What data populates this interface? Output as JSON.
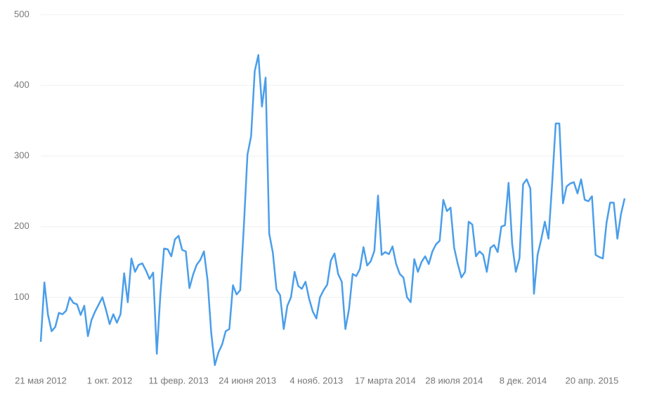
{
  "chart_data": {
    "type": "line",
    "categories": [
      "21 мая 2012",
      null,
      null,
      null,
      null,
      null,
      null,
      null,
      null,
      null,
      null,
      null,
      null,
      null,
      null,
      null,
      null,
      null,
      null,
      "1 окт. 2012",
      null,
      null,
      null,
      null,
      null,
      null,
      null,
      null,
      null,
      null,
      null,
      null,
      null,
      null,
      null,
      null,
      null,
      null,
      "11 февр. 2013",
      null,
      null,
      null,
      null,
      null,
      null,
      null,
      null,
      null,
      null,
      null,
      null,
      null,
      null,
      null,
      null,
      null,
      null,
      "24 июня 2013",
      null,
      null,
      null,
      null,
      null,
      null,
      null,
      null,
      null,
      null,
      null,
      null,
      null,
      null,
      null,
      null,
      null,
      null,
      "4 нояб. 2013",
      null,
      null,
      null,
      null,
      null,
      null,
      null,
      null,
      null,
      null,
      null,
      null,
      null,
      null,
      null,
      null,
      null,
      null,
      "17 марта 2014",
      null,
      null,
      null,
      null,
      null,
      null,
      null,
      null,
      null,
      null,
      null,
      null,
      null,
      null,
      null,
      null,
      null,
      null,
      "28 июля 2014",
      null,
      null,
      null,
      null,
      null,
      null,
      null,
      null,
      null,
      null,
      null,
      null,
      null,
      null,
      null,
      null,
      null,
      null,
      "8 дек. 2014",
      null,
      null,
      null,
      null,
      null,
      null,
      null,
      null,
      null,
      null,
      null,
      null,
      null,
      null,
      null,
      null,
      null,
      null,
      "20 апр. 2015",
      null,
      null,
      null,
      null,
      null,
      null,
      null,
      null,
      null
    ],
    "series": [
      {
        "color": "#4a9eea",
        "values": [
          37,
          121,
          75,
          52,
          58,
          78,
          76,
          81,
          100,
          92,
          90,
          75,
          88,
          45,
          68,
          80,
          90,
          100,
          82,
          62,
          76,
          64,
          76,
          134,
          93,
          155,
          136,
          146,
          148,
          138,
          126,
          135,
          20,
          105,
          169,
          168,
          158,
          182,
          187,
          167,
          165,
          113,
          132,
          146,
          153,
          165,
          124,
          50,
          4,
          22,
          33,
          52,
          55,
          117,
          104,
          110,
          200,
          302,
          328,
          420,
          443,
          370,
          411,
          190,
          163,
          111,
          103,
          55,
          88,
          100,
          136,
          116,
          112,
          122,
          98,
          80,
          70,
          100,
          110,
          118,
          152,
          162,
          133,
          122,
          55,
          83,
          133,
          130,
          140,
          171,
          145,
          151,
          166,
          244,
          160,
          164,
          161,
          172,
          147,
          133,
          128,
          100,
          93,
          154,
          136,
          150,
          158,
          147,
          165,
          175,
          180,
          238,
          222,
          227,
          170,
          147,
          128,
          136,
          207,
          203,
          158,
          165,
          160,
          136,
          170,
          174,
          164,
          200,
          202,
          262,
          175,
          136,
          155,
          260,
          267,
          254,
          105,
          160,
          182,
          207,
          183,
          260,
          346,
          346,
          233,
          257,
          261,
          263,
          247,
          267,
          238,
          236,
          243,
          160,
          157,
          155,
          205,
          234,
          234,
          183,
          218,
          240
        ]
      }
    ],
    "ylim": [
      0,
      500
    ],
    "yticks": [
      100,
      200,
      300,
      400,
      500
    ],
    "grid": true
  }
}
